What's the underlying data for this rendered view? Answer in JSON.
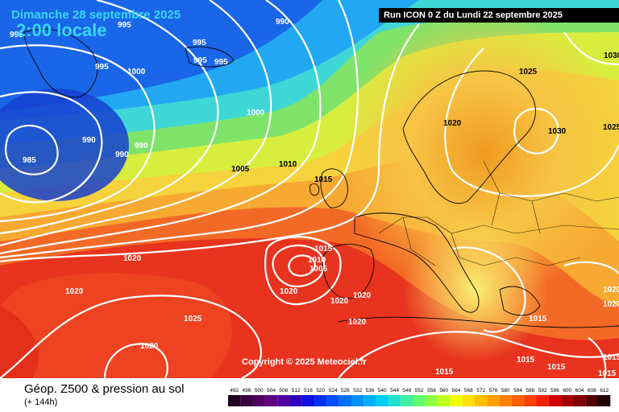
{
  "header": {
    "date": "Dimanche 28 septembre 2025",
    "time": "2:00 locale",
    "run": "Run ICON 0 Z du Lundi 22 septembre 2025"
  },
  "copyright": "Copyright © 2025 Meteociel.fr",
  "legend": {
    "title": "Géop. Z500 & pression au sol",
    "subtitle": "(+ 144h)",
    "scale_values": [
      "492",
      "496",
      "500",
      "504",
      "508",
      "512",
      "516",
      "520",
      "524",
      "528",
      "532",
      "536",
      "540",
      "544",
      "548",
      "552",
      "556",
      "560",
      "564",
      "568",
      "572",
      "576",
      "580",
      "584",
      "588",
      "592",
      "596",
      "600",
      "604",
      "608",
      "612"
    ],
    "scale_colors": [
      "#200020",
      "#3a0040",
      "#500060",
      "#600080",
      "#5000a0",
      "#3000c0",
      "#1010e0",
      "#0030f0",
      "#0050ff",
      "#0070ff",
      "#0090ff",
      "#00b0ff",
      "#00d0f0",
      "#20e0d0",
      "#40f0a0",
      "#60ff70",
      "#90ff40",
      "#c0ff20",
      "#f0ff00",
      "#ffe000",
      "#ffc000",
      "#ffa000",
      "#ff8000",
      "#ff6000",
      "#ff4000",
      "#f02000",
      "#d00000",
      "#a00000",
      "#800000",
      "#500000",
      "#200000"
    ]
  },
  "pressure_labels": [
    {
      "text": "995",
      "color": "white"
    },
    {
      "text": "995",
      "color": "white"
    },
    {
      "text": "990",
      "color": "white"
    },
    {
      "text": "995",
      "color": "white"
    },
    {
      "text": "995",
      "color": "white"
    },
    {
      "text": "995",
      "color": "white"
    },
    {
      "text": "1000",
      "color": "white"
    },
    {
      "text": "995",
      "color": "white"
    },
    {
      "text": "1000",
      "color": "white"
    },
    {
      "text": "990",
      "color": "white"
    },
    {
      "text": "990",
      "color": "white"
    },
    {
      "text": "990",
      "color": "white"
    },
    {
      "text": "985",
      "color": "white"
    },
    {
      "text": "1005",
      "color": "black"
    },
    {
      "text": "1010",
      "color": "black"
    },
    {
      "text": "1015",
      "color": "black"
    },
    {
      "text": "1020",
      "color": "black"
    },
    {
      "text": "1025",
      "color": "black"
    },
    {
      "text": "1030",
      "color": "black"
    },
    {
      "text": "1030",
      "color": "black"
    },
    {
      "text": "1025",
      "color": "black"
    },
    {
      "text": "1015",
      "color": "white"
    },
    {
      "text": "1010",
      "color": "white"
    },
    {
      "text": "1005",
      "color": "white"
    },
    {
      "text": "1020",
      "color": "white"
    },
    {
      "text": "1020",
      "color": "white"
    },
    {
      "text": "1020",
      "color": "white"
    },
    {
      "text": "1020",
      "color": "white"
    },
    {
      "text": "1020",
      "color": "white"
    },
    {
      "text": "1025",
      "color": "white"
    },
    {
      "text": "1020",
      "color": "white"
    },
    {
      "text": "1020",
      "color": "white"
    },
    {
      "text": "1015",
      "color": "white"
    },
    {
      "text": "1015",
      "color": "white"
    },
    {
      "text": "1015",
      "color": "white"
    },
    {
      "text": "1020",
      "color": "white"
    },
    {
      "text": "1020",
      "color": "white"
    },
    {
      "text": "1015",
      "color": "white"
    },
    {
      "text": "1015",
      "color": "white"
    },
    {
      "text": "1015",
      "color": "white"
    }
  ]
}
